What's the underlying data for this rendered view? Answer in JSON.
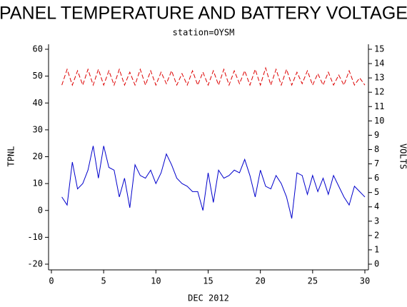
{
  "chart_data": {
    "type": "line",
    "title": "PANEL TEMPERATURE AND BATTERY VOLTAGE",
    "subtitle": "station=OYSM",
    "x_label": "DEC 2012",
    "y_label": "TPNL",
    "y2_label": "VOLTS",
    "x": [
      1,
      1.5,
      2,
      2.5,
      3,
      3.5,
      4,
      4.5,
      5,
      5.5,
      6,
      6.5,
      7,
      7.5,
      8,
      8.5,
      9,
      9.5,
      10,
      10.5,
      11,
      11.5,
      12,
      12.5,
      13,
      13.5,
      14,
      14.5,
      15,
      15.5,
      16,
      16.5,
      17,
      17.5,
      18,
      18.5,
      19,
      19.5,
      20,
      20.5,
      21,
      21.5,
      22,
      22.5,
      23,
      23.5,
      24,
      24.5,
      25,
      25.5,
      26,
      26.5,
      27,
      27.5,
      28,
      28.5,
      29,
      29.5,
      30
    ],
    "series": [
      {
        "name": "TPNL",
        "color": "#0000cc",
        "dashed": false,
        "values": [
          5,
          2,
          18,
          8,
          10,
          15,
          24,
          12,
          24,
          16,
          15,
          5,
          12,
          1,
          17,
          13,
          12,
          15,
          10,
          14,
          21,
          17,
          12,
          10,
          9,
          7,
          7,
          0,
          14,
          3,
          15,
          12,
          13,
          15,
          14,
          19,
          13,
          5,
          15,
          9,
          8,
          13,
          10,
          5,
          -3,
          14,
          13,
          6,
          13,
          7,
          12,
          6,
          13,
          9,
          5,
          2,
          9,
          7,
          5
        ]
      },
      {
        "name": "VOLTS",
        "color": "#dd0000",
        "dashed": true,
        "axis": "y2",
        "values": [
          12.5,
          13.6,
          12.5,
          13.5,
          12.5,
          13.6,
          12.5,
          13.6,
          12.5,
          13.5,
          12.5,
          13.6,
          12.5,
          13.4,
          12.5,
          13.6,
          12.5,
          13.5,
          12.5,
          13.4,
          12.6,
          13.5,
          12.5,
          13.3,
          12.5,
          13.5,
          12.5,
          13.4,
          12.5,
          13.5,
          12.5,
          13.6,
          12.5,
          13.5,
          12.6,
          13.5,
          12.5,
          13.6,
          12.5,
          13.7,
          12.5,
          13.6,
          12.5,
          13.6,
          12.5,
          13.4,
          12.6,
          13.5,
          12.5,
          13.3,
          12.5,
          13.4,
          12.5,
          13.2,
          12.5,
          13.5,
          12.5,
          13.0,
          12.5
        ]
      }
    ],
    "xlim": [
      0,
      30
    ],
    "xticks": [
      0,
      5,
      10,
      15,
      20,
      25,
      30
    ],
    "ylim": [
      -20,
      60
    ],
    "yticks": [
      -20,
      -10,
      0,
      10,
      20,
      30,
      40,
      50,
      60
    ],
    "y2lim": [
      0,
      15
    ],
    "y2ticks": [
      0,
      1,
      2,
      3,
      4,
      5,
      6,
      7,
      8,
      9,
      10,
      11,
      12,
      13,
      14,
      15
    ]
  }
}
